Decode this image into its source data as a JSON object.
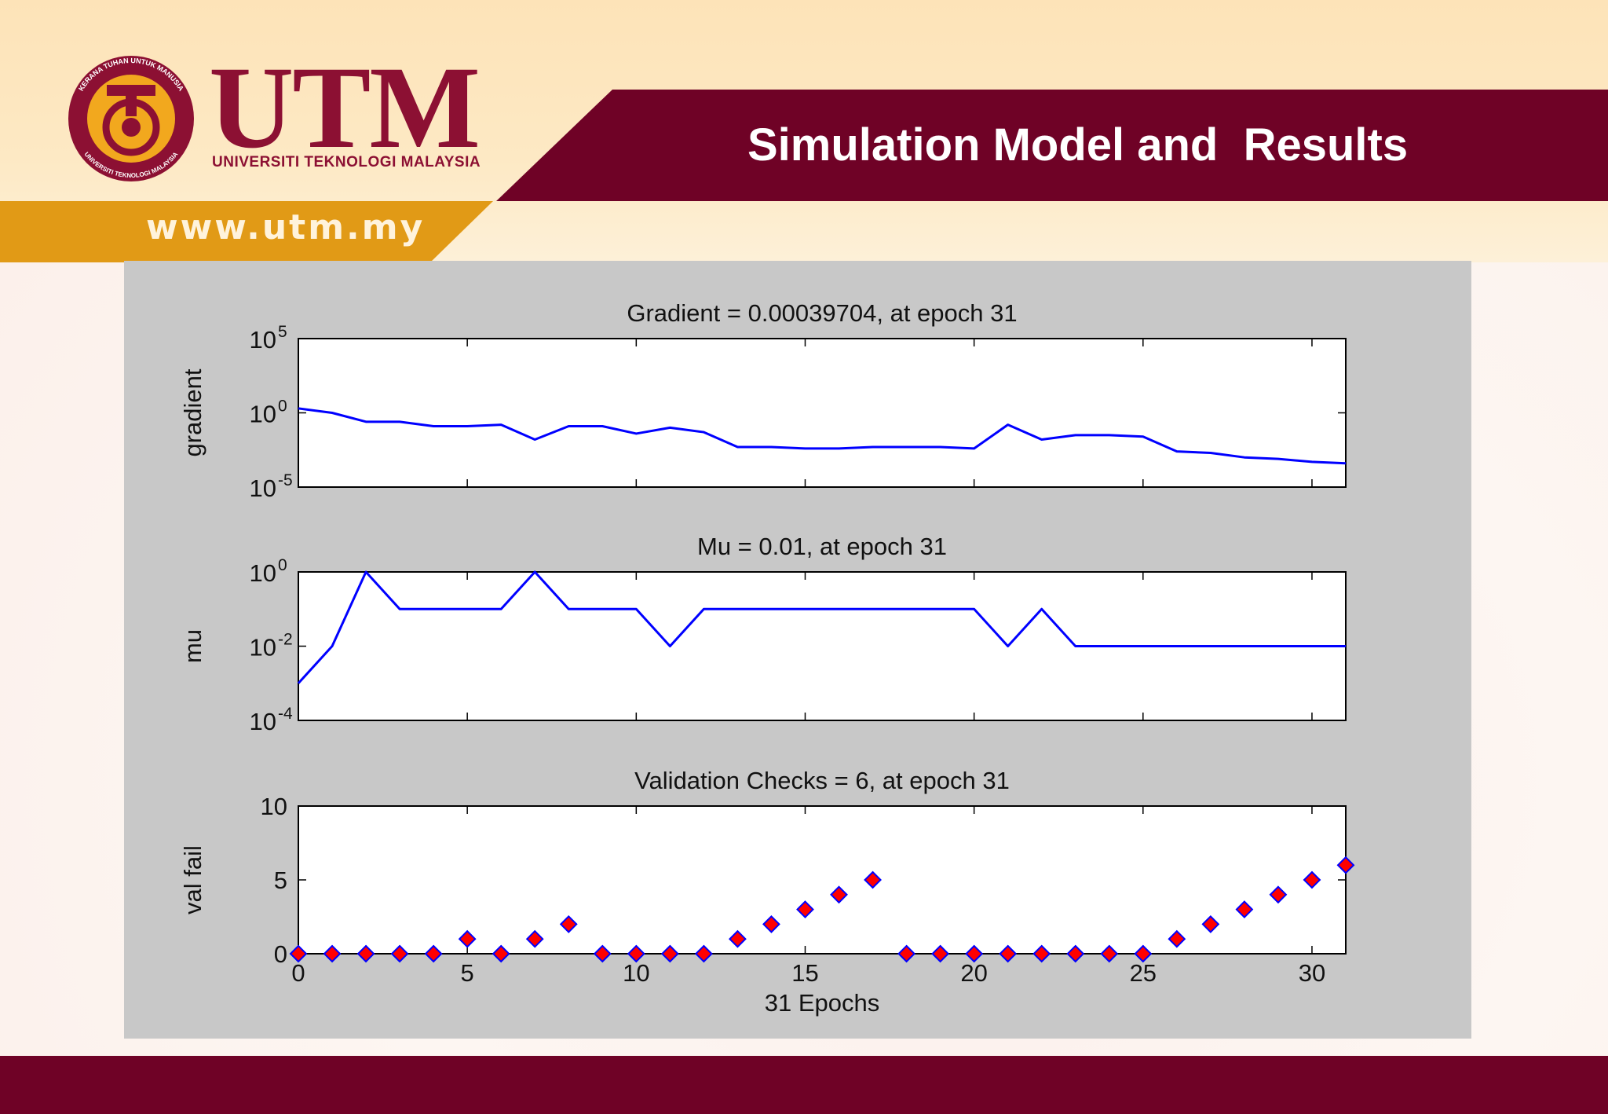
{
  "slide": {
    "title": "Simulation Model and  Results",
    "website": "www.utm.my",
    "brand_name": "UTM",
    "brand_subtitle": "UNIVERSITI TEKNOLOGI MALAYSIA",
    "seal_text_top": "KERANA TUHAN UNTUK MANUSIA",
    "seal_text_bottom": "UNIVERSITI TEKNOLOGI MALAYSIA",
    "colors": {
      "maroon": "#6f0226",
      "brand": "#8c1033",
      "gold": "#e19a16",
      "cream": "#fde3b8"
    }
  },
  "chart_data": [
    {
      "type": "line",
      "title": "Gradient = 0.00039704, at epoch 31",
      "xlabel": "",
      "ylabel": "gradient",
      "yscale": "log",
      "ylim_exp": [
        -5,
        5
      ],
      "ytick_base": "10",
      "yticks_exp": [
        "5",
        "0",
        "-5"
      ],
      "xlim": [
        0,
        31
      ],
      "color": "#0000ff",
      "x": [
        0,
        1,
        2,
        3,
        4,
        5,
        6,
        7,
        8,
        9,
        10,
        11,
        12,
        13,
        14,
        15,
        16,
        17,
        18,
        19,
        20,
        21,
        22,
        23,
        24,
        25,
        26,
        27,
        28,
        29,
        30,
        31
      ],
      "y_exp": [
        0.3,
        0.0,
        -0.6,
        -0.6,
        -0.9,
        -0.9,
        -0.8,
        -1.8,
        -0.9,
        -0.9,
        -1.4,
        -1.0,
        -1.3,
        -2.3,
        -2.3,
        -2.4,
        -2.4,
        -2.3,
        -2.3,
        -2.3,
        -2.4,
        -0.8,
        -1.8,
        -1.5,
        -1.5,
        -1.6,
        -2.6,
        -2.7,
        -3.0,
        -3.1,
        -3.3,
        -3.4
      ]
    },
    {
      "type": "line",
      "title": "Mu = 0.01, at epoch 31",
      "xlabel": "",
      "ylabel": "mu",
      "yscale": "log",
      "ylim_exp": [
        -4,
        0
      ],
      "ytick_base": "10",
      "yticks_exp": [
        "0",
        "-2",
        "-4"
      ],
      "xlim": [
        0,
        31
      ],
      "color": "#0000ff",
      "x": [
        0,
        1,
        2,
        3,
        4,
        5,
        6,
        7,
        8,
        9,
        10,
        11,
        12,
        13,
        14,
        15,
        16,
        17,
        18,
        19,
        20,
        21,
        22,
        23,
        24,
        25,
        26,
        27,
        28,
        29,
        30,
        31
      ],
      "y_exp": [
        -3,
        -2,
        0,
        -1,
        -1,
        -1,
        -1,
        0,
        -1,
        -1,
        -1,
        -2,
        -1,
        -1,
        -1,
        -1,
        -1,
        -1,
        -1,
        -1,
        -1,
        -2,
        -1,
        -2,
        -2,
        -2,
        -2,
        -2,
        -2,
        -2,
        -2,
        -2
      ]
    },
    {
      "type": "scatter",
      "title": "Validation Checks = 6, at epoch 31",
      "xlabel": "31 Epochs",
      "ylabel": "val fail",
      "ylim": [
        0,
        10
      ],
      "yticks": [
        "10",
        "5",
        "0"
      ],
      "xlim": [
        0,
        31
      ],
      "xticks": [
        "0",
        "5",
        "10",
        "15",
        "20",
        "25",
        "30"
      ],
      "marker_fill": "#ff0000",
      "marker_edge": "#0000ff",
      "x": [
        0,
        1,
        2,
        3,
        4,
        5,
        6,
        7,
        8,
        9,
        10,
        11,
        12,
        13,
        14,
        15,
        16,
        17,
        18,
        19,
        20,
        21,
        22,
        23,
        24,
        25,
        26,
        27,
        28,
        29,
        30,
        31
      ],
      "y": [
        0,
        0,
        0,
        0,
        0,
        1,
        0,
        1,
        2,
        0,
        0,
        0,
        0,
        1,
        2,
        3,
        4,
        5,
        0,
        0,
        0,
        0,
        0,
        0,
        0,
        0,
        1,
        2,
        3,
        4,
        5,
        6
      ]
    }
  ]
}
